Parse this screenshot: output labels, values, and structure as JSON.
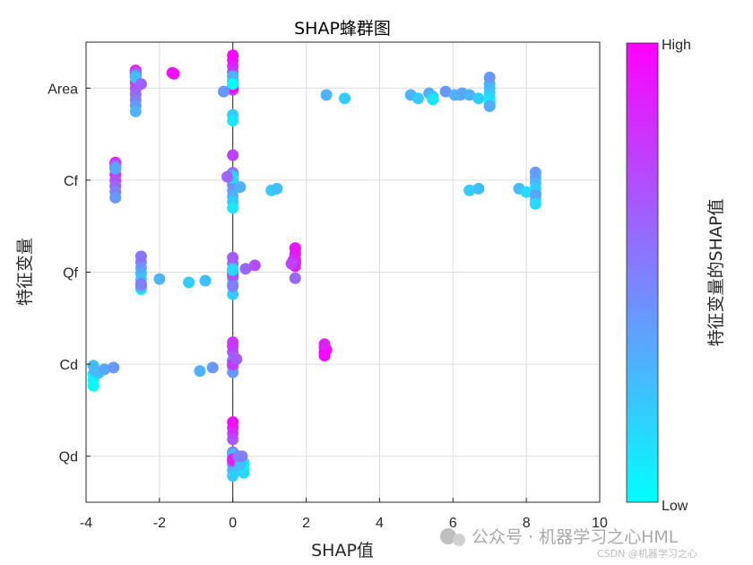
{
  "chart_data": {
    "type": "scatter",
    "title": "SHAP蜂群图",
    "xlabel": "SHAP值",
    "ylabel": "特征变量",
    "xlim": [
      -4,
      10
    ],
    "xticks": [
      -4,
      -2,
      0,
      2,
      4,
      6,
      8,
      10
    ],
    "xtick_labels": [
      "-4",
      "-2",
      "0",
      "2",
      "4",
      "6",
      "8",
      "10"
    ],
    "grid": true,
    "features": [
      "Area",
      "Cf",
      "Qf",
      "Cd",
      "Qd"
    ],
    "colorbar": {
      "label": "特征变量的SHAP值",
      "high": "High",
      "low": "Low",
      "color_low": "#00ffff",
      "color_high": "#ff00ff"
    },
    "series": [
      {
        "name": "Area",
        "points": [
          [
            -2.65,
            1.0
          ],
          [
            -2.65,
            0.95
          ],
          [
            -2.65,
            0.9
          ],
          [
            -2.65,
            0.85
          ],
          [
            -2.65,
            0.8
          ],
          [
            -2.65,
            0.75
          ],
          [
            -2.65,
            0.7
          ],
          [
            -2.65,
            0.65
          ],
          [
            -2.65,
            0.6
          ],
          [
            -2.65,
            0.55
          ],
          [
            -2.65,
            0.5
          ],
          [
            -2.65,
            0.45
          ],
          [
            -2.65,
            0.4
          ],
          [
            -2.65,
            0.35
          ],
          [
            -2.65,
            0.3
          ],
          [
            -2.65,
            0.25
          ],
          [
            -2.5,
            0.62
          ],
          [
            -1.6,
            0.92
          ],
          [
            -1.65,
            0.95
          ],
          [
            0,
            0.5
          ],
          [
            0,
            0.48
          ],
          [
            0,
            0.52
          ],
          [
            0,
            0.55
          ],
          [
            0,
            0.6
          ],
          [
            0,
            0.62
          ],
          [
            0,
            0.66
          ],
          [
            0,
            0.7
          ],
          [
            0,
            0.75
          ],
          [
            0,
            0.8
          ],
          [
            0,
            0.85
          ],
          [
            0,
            0.9
          ],
          [
            0,
            0.95
          ],
          [
            0,
            0.98
          ],
          [
            -0.25,
            0.4
          ],
          [
            0,
            0.2
          ],
          [
            0,
            0.3
          ],
          [
            0,
            0.1
          ],
          [
            0,
            0.0
          ],
          [
            2.55,
            0.3
          ],
          [
            3.05,
            0.2
          ],
          [
            4.85,
            0.3
          ],
          [
            5.05,
            0.2
          ],
          [
            5.35,
            0.35
          ],
          [
            5.4,
            0.3
          ],
          [
            5.45,
            0.25
          ],
          [
            5.45,
            0.1
          ],
          [
            5.8,
            0.4
          ],
          [
            6.05,
            0.3
          ],
          [
            6.2,
            0.3
          ],
          [
            6.25,
            0.35
          ],
          [
            6.45,
            0.3
          ],
          [
            6.7,
            0.2
          ],
          [
            7.0,
            0.1
          ],
          [
            7.0,
            0.0
          ],
          [
            7.0,
            0.05
          ],
          [
            7.0,
            0.08
          ],
          [
            7.0,
            0.12
          ],
          [
            7.0,
            0.15
          ],
          [
            7.0,
            0.18
          ],
          [
            7.0,
            0.22
          ],
          [
            7.0,
            0.25
          ],
          [
            7.0,
            0.28
          ],
          [
            7.0,
            0.32
          ],
          [
            7.0,
            0.4
          ]
        ]
      },
      {
        "name": "Cf",
        "points": [
          [
            -3.2,
            1.0
          ],
          [
            -3.2,
            0.95
          ],
          [
            -3.2,
            0.9
          ],
          [
            -3.2,
            0.85
          ],
          [
            -3.2,
            0.8
          ],
          [
            -3.2,
            0.75
          ],
          [
            -3.2,
            0.7
          ],
          [
            -3.2,
            0.65
          ],
          [
            -3.2,
            0.6
          ],
          [
            -3.2,
            0.55
          ],
          [
            -3.2,
            0.5
          ],
          [
            -3.2,
            0.45
          ],
          [
            -3.2,
            0.4
          ],
          [
            -3.2,
            0.35
          ],
          [
            0,
            0.7
          ],
          [
            0,
            0.65
          ],
          [
            0,
            0.6
          ],
          [
            0,
            0.55
          ],
          [
            0,
            0.5
          ],
          [
            0,
            0.45
          ],
          [
            0,
            0.4
          ],
          [
            0,
            0.35
          ],
          [
            0,
            0.3
          ],
          [
            0,
            0.25
          ],
          [
            0,
            0.2
          ],
          [
            0,
            0.15
          ],
          [
            0,
            0.1
          ],
          [
            0,
            0.75
          ],
          [
            -0.15,
            0.6
          ],
          [
            0.2,
            0.3
          ],
          [
            1.05,
            0.2
          ],
          [
            1.2,
            0.25
          ],
          [
            6.45,
            0.2
          ],
          [
            6.7,
            0.25
          ],
          [
            7.8,
            0.25
          ],
          [
            8.0,
            0.15
          ],
          [
            8.25,
            0.1
          ],
          [
            8.25,
            0.05
          ],
          [
            8.25,
            0.0
          ],
          [
            8.25,
            0.12
          ],
          [
            8.25,
            0.18
          ],
          [
            8.25,
            0.22
          ],
          [
            8.25,
            0.28
          ],
          [
            8.25,
            0.3
          ],
          [
            8.25,
            0.35
          ],
          [
            8.25,
            0.38
          ],
          [
            8.25,
            0.15
          ]
        ]
      },
      {
        "name": "Qf",
        "points": [
          [
            -2.5,
            0.0
          ],
          [
            -2.5,
            0.05
          ],
          [
            -2.5,
            0.1
          ],
          [
            -2.5,
            0.15
          ],
          [
            -2.5,
            0.2
          ],
          [
            -2.5,
            0.25
          ],
          [
            -2.5,
            0.3
          ],
          [
            -2.5,
            0.35
          ],
          [
            -2.5,
            0.4
          ],
          [
            -2.5,
            0.45
          ],
          [
            -2.5,
            0.5
          ],
          [
            -2.5,
            0.55
          ],
          [
            -2.0,
            0.3
          ],
          [
            -1.2,
            0.2
          ],
          [
            -0.75,
            0.25
          ],
          [
            0,
            0.5
          ],
          [
            0,
            0.45
          ],
          [
            0,
            0.4
          ],
          [
            0,
            0.35
          ],
          [
            0,
            0.3
          ],
          [
            0,
            0.55
          ],
          [
            0,
            0.6
          ],
          [
            0,
            0.65
          ],
          [
            0,
            0.7
          ],
          [
            0,
            0.25
          ],
          [
            0,
            0.2
          ],
          [
            0,
            0.15
          ],
          [
            0,
            0.5
          ],
          [
            0.35,
            0.6
          ],
          [
            0.6,
            0.7
          ],
          [
            1.7,
            0.75
          ],
          [
            1.7,
            0.8
          ],
          [
            1.7,
            0.85
          ],
          [
            1.7,
            0.9
          ],
          [
            1.7,
            0.95
          ],
          [
            1.7,
            1.0
          ],
          [
            1.65,
            0.85
          ],
          [
            1.7,
            0.88
          ],
          [
            1.7,
            0.92
          ],
          [
            1.6,
            0.75
          ],
          [
            1.7,
            0.6
          ]
        ]
      },
      {
        "name": "Cd",
        "points": [
          [
            -3.8,
            0.2
          ],
          [
            -3.8,
            0.15
          ],
          [
            -3.8,
            0.1
          ],
          [
            -3.8,
            0.05
          ],
          [
            -3.8,
            0.0
          ],
          [
            -3.8,
            0.25
          ],
          [
            -3.75,
            0.3
          ],
          [
            -3.65,
            0.25
          ],
          [
            -3.5,
            0.35
          ],
          [
            -3.25,
            0.4
          ],
          [
            -0.9,
            0.3
          ],
          [
            -0.55,
            0.4
          ],
          [
            0,
            0.6
          ],
          [
            0,
            0.55
          ],
          [
            0,
            0.5
          ],
          [
            0,
            0.45
          ],
          [
            0,
            0.4
          ],
          [
            0,
            0.65
          ],
          [
            0,
            0.7
          ],
          [
            0,
            0.75
          ],
          [
            0,
            0.78
          ],
          [
            0,
            0.8
          ],
          [
            0.1,
            0.65
          ],
          [
            2.5,
            1.0
          ],
          [
            2.5,
            0.95
          ],
          [
            2.5,
            0.9
          ],
          [
            2.5,
            0.85
          ],
          [
            2.5,
            0.98
          ],
          [
            2.55,
            0.92
          ],
          [
            2.5,
            0.88
          ],
          [
            2.5,
            0.96
          ]
        ]
      },
      {
        "name": "Qd",
        "points": [
          [
            0,
            0.6
          ],
          [
            0,
            0.55
          ],
          [
            0,
            0.5
          ],
          [
            0,
            0.45
          ],
          [
            0,
            0.4
          ],
          [
            0,
            0.35
          ],
          [
            0,
            0.3
          ],
          [
            0,
            0.25
          ],
          [
            0,
            0.2
          ],
          [
            0,
            0.65
          ],
          [
            0,
            0.7
          ],
          [
            0,
            0.75
          ],
          [
            0,
            0.8
          ],
          [
            0,
            0.85
          ],
          [
            0,
            0.9
          ],
          [
            0,
            0.95
          ],
          [
            0.3,
            0.3
          ],
          [
            0.3,
            0.2
          ],
          [
            0.3,
            0.1
          ],
          [
            0.3,
            0.0
          ],
          [
            0.3,
            0.15
          ],
          [
            0.3,
            0.05
          ],
          [
            0.2,
            0.25
          ],
          [
            0.15,
            0.5
          ],
          [
            0.25,
            0.5
          ]
        ]
      }
    ]
  },
  "watermark": {
    "main": "公众号 · 机器学习之心HML",
    "sub": "CSDN @机器学习之心"
  }
}
